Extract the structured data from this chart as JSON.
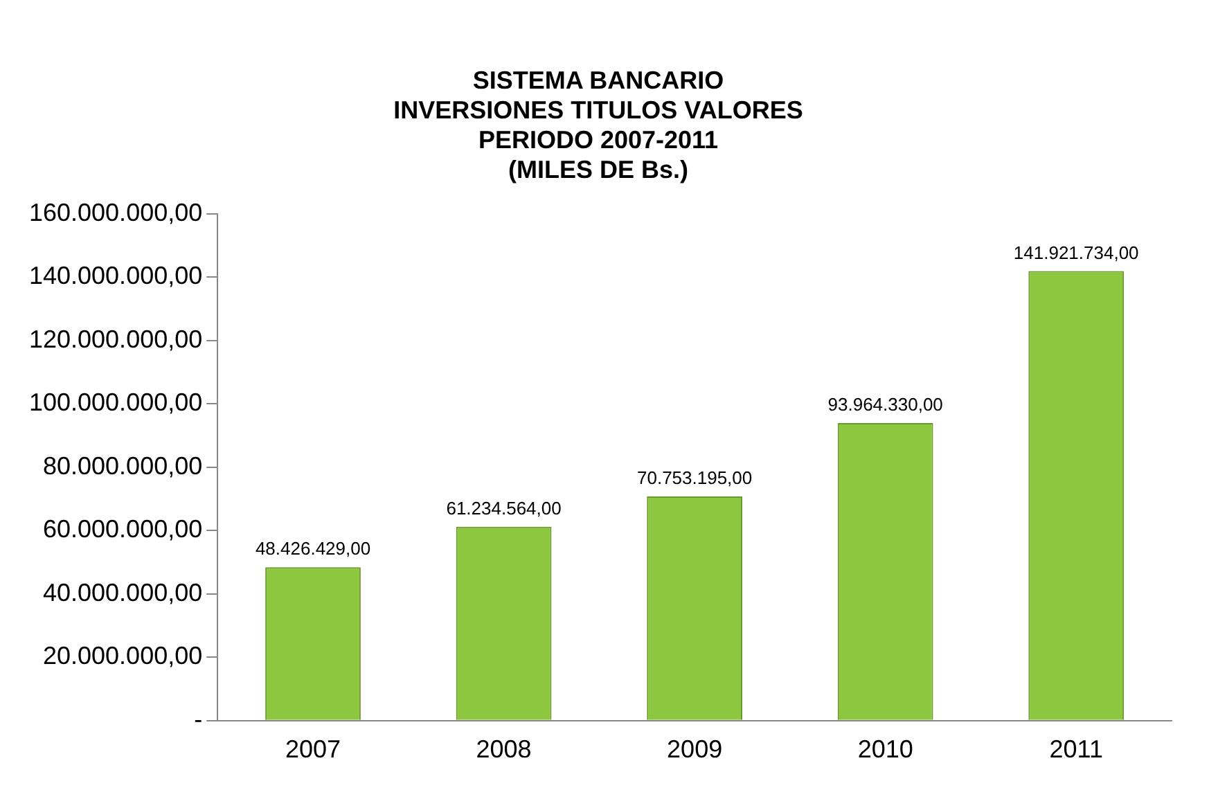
{
  "chart_data": {
    "type": "bar",
    "title": "SISTEMA BANCARIO\nINVERSIONES TITULOS VALORES\nPERIODO 2007-2011\n(MILES DE Bs.)",
    "categories": [
      "2007",
      "2008",
      "2009",
      "2010",
      "2011"
    ],
    "values": [
      48426429,
      61234564,
      70753195,
      93964330,
      141921734
    ],
    "value_labels": [
      "48.426.429,00",
      "61.234.564,00",
      "70.753.195,00",
      "93.964.330,00",
      "141.921.734,00"
    ],
    "color": "#8dc63f",
    "ylim": [
      0,
      160000000
    ],
    "yticks": [
      {
        "value": 0,
        "label": "-"
      },
      {
        "value": 20000000,
        "label": "20.000.000,00"
      },
      {
        "value": 40000000,
        "label": "40.000.000,00"
      },
      {
        "value": 60000000,
        "label": "60.000.000,00"
      },
      {
        "value": 80000000,
        "label": "80.000.000,00"
      },
      {
        "value": 100000000,
        "label": "100.000.000,00"
      },
      {
        "value": 120000000,
        "label": "120.000.000,00"
      },
      {
        "value": 140000000,
        "label": "140.000.000,00"
      },
      {
        "value": 160000000,
        "label": "160.000.000,00"
      }
    ],
    "grid": false,
    "legend": false
  }
}
